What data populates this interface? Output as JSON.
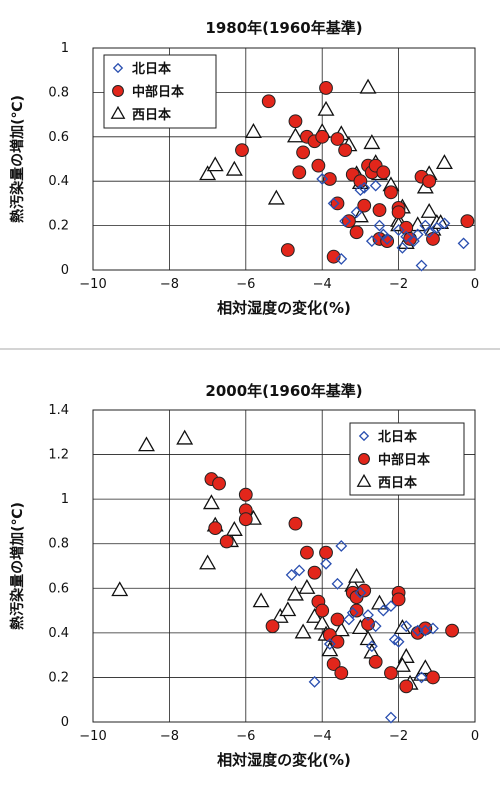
{
  "chart_data": [
    {
      "type": "scatter",
      "title": "1980年(1960年基準)",
      "xlabel": "相対湿度の変化(%)",
      "ylabel": "熱汚染量の増加(℃)",
      "xlim": [
        -10,
        0
      ],
      "ylim": [
        0,
        1
      ],
      "xticks": [
        -10,
        -8,
        -6,
        -4,
        -2,
        0
      ],
      "yticks": [
        0,
        0.2,
        0.4,
        0.6,
        0.8,
        1
      ],
      "tick_labels_x": [
        "−10",
        "−8",
        "−6",
        "−4",
        "−2",
        "0"
      ],
      "tick_labels_y": [
        "0",
        "0.2",
        "0.4",
        "0.6",
        "0.8",
        "1"
      ],
      "grid": true,
      "legend_position": "top-left",
      "series": [
        {
          "name": "北日本",
          "marker": "diamond",
          "color": "#2a4fb0",
          "points": [
            [
              -4.0,
              0.41
            ],
            [
              -3.7,
              0.3
            ],
            [
              -3.4,
              0.22
            ],
            [
              -3.1,
              0.26
            ],
            [
              -3.0,
              0.36
            ],
            [
              -2.9,
              0.37
            ],
            [
              -2.7,
              0.13
            ],
            [
              -2.6,
              0.38
            ],
            [
              -2.5,
              0.2
            ],
            [
              -2.4,
              0.16
            ],
            [
              -2.3,
              0.14
            ],
            [
              -2.0,
              0.18
            ],
            [
              -1.9,
              0.1
            ],
            [
              -1.8,
              0.15
            ],
            [
              -1.6,
              0.13
            ],
            [
              -1.5,
              0.16
            ],
            [
              -1.4,
              0.02
            ],
            [
              -1.3,
              0.2
            ],
            [
              -1.2,
              0.17
            ],
            [
              -1.0,
              0.19
            ],
            [
              -0.8,
              0.21
            ],
            [
              -0.3,
              0.12
            ],
            [
              -3.5,
              0.05
            ]
          ]
        },
        {
          "name": "中部日本",
          "marker": "circle",
          "color": "#e2261b",
          "points": [
            [
              -6.1,
              0.54
            ],
            [
              -5.4,
              0.76
            ],
            [
              -4.9,
              0.09
            ],
            [
              -4.7,
              0.67
            ],
            [
              -4.6,
              0.44
            ],
            [
              -4.5,
              0.53
            ],
            [
              -4.4,
              0.6
            ],
            [
              -4.2,
              0.58
            ],
            [
              -4.1,
              0.47
            ],
            [
              -4.0,
              0.6
            ],
            [
              -3.9,
              0.82
            ],
            [
              -3.8,
              0.41
            ],
            [
              -3.7,
              0.06
            ],
            [
              -3.6,
              0.59
            ],
            [
              -3.6,
              0.3
            ],
            [
              -3.4,
              0.54
            ],
            [
              -3.3,
              0.22
            ],
            [
              -3.2,
              0.43
            ],
            [
              -3.1,
              0.17
            ],
            [
              -3.0,
              0.4
            ],
            [
              -2.9,
              0.29
            ],
            [
              -2.8,
              0.47
            ],
            [
              -2.7,
              0.44
            ],
            [
              -2.6,
              0.47
            ],
            [
              -2.5,
              0.27
            ],
            [
              -2.5,
              0.14
            ],
            [
              -2.4,
              0.44
            ],
            [
              -2.3,
              0.13
            ],
            [
              -2.2,
              0.35
            ],
            [
              -2.0,
              0.28
            ],
            [
              -2.0,
              0.26
            ],
            [
              -1.8,
              0.19
            ],
            [
              -1.7,
              0.14
            ],
            [
              -1.4,
              0.42
            ],
            [
              -1.2,
              0.4
            ],
            [
              -1.1,
              0.14
            ],
            [
              -0.2,
              0.22
            ]
          ]
        },
        {
          "name": "西日本",
          "marker": "triangle",
          "color": "#111111",
          "points": [
            [
              -7.0,
              0.43
            ],
            [
              -6.8,
              0.47
            ],
            [
              -6.3,
              0.45
            ],
            [
              -5.8,
              0.62
            ],
            [
              -5.2,
              0.32
            ],
            [
              -4.7,
              0.6
            ],
            [
              -4.0,
              0.62
            ],
            [
              -3.9,
              0.72
            ],
            [
              -3.5,
              0.61
            ],
            [
              -3.3,
              0.56
            ],
            [
              -3.1,
              0.43
            ],
            [
              -3.0,
              0.39
            ],
            [
              -3.0,
              0.24
            ],
            [
              -2.8,
              0.82
            ],
            [
              -2.7,
              0.57
            ],
            [
              -2.6,
              0.48
            ],
            [
              -2.5,
              0.43
            ],
            [
              -2.2,
              0.38
            ],
            [
              -2.0,
              0.22
            ],
            [
              -2.0,
              0.2
            ],
            [
              -1.9,
              0.28
            ],
            [
              -1.8,
              0.12
            ],
            [
              -1.5,
              0.2
            ],
            [
              -1.3,
              0.37
            ],
            [
              -1.2,
              0.26
            ],
            [
              -1.1,
              0.18
            ],
            [
              -1.0,
              0.21
            ],
            [
              -0.9,
              0.21
            ],
            [
              -0.8,
              0.48
            ],
            [
              -1.2,
              0.43
            ]
          ]
        }
      ]
    },
    {
      "type": "scatter",
      "title": "2000年(1960年基準)",
      "xlabel": "相対湿度の変化(%)",
      "ylabel": "熱汚染量の増加(℃)",
      "xlim": [
        -10,
        0
      ],
      "ylim": [
        0,
        1.4
      ],
      "xticks": [
        -10,
        -8,
        -6,
        -4,
        -2,
        0
      ],
      "yticks": [
        0,
        0.2,
        0.4,
        0.6,
        0.8,
        1,
        1.2,
        1.4
      ],
      "tick_labels_x": [
        "−10",
        "−8",
        "−6",
        "−4",
        "−2",
        "0"
      ],
      "tick_labels_y": [
        "0",
        "0.2",
        "0.4",
        "0.6",
        "0.8",
        "1",
        "1.2",
        "1.4"
      ],
      "grid": true,
      "legend_position": "top-right",
      "series": [
        {
          "name": "北日本",
          "marker": "diamond",
          "color": "#2a4fb0",
          "points": [
            [
              -4.8,
              0.66
            ],
            [
              -4.6,
              0.68
            ],
            [
              -4.2,
              0.18
            ],
            [
              -3.9,
              0.71
            ],
            [
              -3.8,
              0.35
            ],
            [
              -3.6,
              0.62
            ],
            [
              -3.5,
              0.79
            ],
            [
              -3.3,
              0.46
            ],
            [
              -3.2,
              0.49
            ],
            [
              -3.0,
              0.58
            ],
            [
              -2.8,
              0.48
            ],
            [
              -2.7,
              0.34
            ],
            [
              -2.6,
              0.43
            ],
            [
              -2.4,
              0.5
            ],
            [
              -2.2,
              0.02
            ],
            [
              -2.2,
              0.52
            ],
            [
              -2.1,
              0.37
            ],
            [
              -2.0,
              0.36
            ],
            [
              -1.8,
              0.43
            ],
            [
              -1.5,
              0.41
            ],
            [
              -1.4,
              0.2
            ],
            [
              -1.3,
              0.41
            ],
            [
              -1.1,
              0.42
            ]
          ]
        },
        {
          "name": "中部日本",
          "marker": "circle",
          "color": "#e2261b",
          "points": [
            [
              -6.9,
              1.09
            ],
            [
              -6.7,
              1.07
            ],
            [
              -6.8,
              0.87
            ],
            [
              -6.5,
              0.81
            ],
            [
              -6.0,
              1.02
            ],
            [
              -6.0,
              0.95
            ],
            [
              -6.0,
              0.91
            ],
            [
              -5.3,
              0.43
            ],
            [
              -4.7,
              0.89
            ],
            [
              -4.4,
              0.76
            ],
            [
              -4.2,
              0.67
            ],
            [
              -4.1,
              0.54
            ],
            [
              -4.0,
              0.5
            ],
            [
              -3.9,
              0.76
            ],
            [
              -3.8,
              0.39
            ],
            [
              -3.7,
              0.26
            ],
            [
              -3.6,
              0.46
            ],
            [
              -3.6,
              0.36
            ],
            [
              -3.5,
              0.22
            ],
            [
              -3.2,
              0.58
            ],
            [
              -3.1,
              0.56
            ],
            [
              -3.1,
              0.5
            ],
            [
              -2.9,
              0.59
            ],
            [
              -2.8,
              0.44
            ],
            [
              -2.6,
              0.27
            ],
            [
              -2.2,
              0.22
            ],
            [
              -2.0,
              0.58
            ],
            [
              -2.0,
              0.55
            ],
            [
              -1.8,
              0.16
            ],
            [
              -1.5,
              0.4
            ],
            [
              -1.3,
              0.42
            ],
            [
              -1.1,
              0.2
            ],
            [
              -0.6,
              0.41
            ]
          ]
        },
        {
          "name": "西日本",
          "marker": "triangle",
          "color": "#111111",
          "points": [
            [
              -9.3,
              0.59
            ],
            [
              -8.6,
              1.24
            ],
            [
              -7.6,
              1.27
            ],
            [
              -7.0,
              0.71
            ],
            [
              -6.9,
              0.98
            ],
            [
              -6.8,
              0.88
            ],
            [
              -6.4,
              0.81
            ],
            [
              -6.3,
              0.86
            ],
            [
              -5.8,
              0.91
            ],
            [
              -5.6,
              0.54
            ],
            [
              -5.1,
              0.47
            ],
            [
              -4.9,
              0.5
            ],
            [
              -4.7,
              0.57
            ],
            [
              -4.5,
              0.4
            ],
            [
              -4.4,
              0.6
            ],
            [
              -4.2,
              0.47
            ],
            [
              -4.0,
              0.44
            ],
            [
              -3.9,
              0.39
            ],
            [
              -3.8,
              0.32
            ],
            [
              -3.5,
              0.41
            ],
            [
              -3.2,
              0.61
            ],
            [
              -3.1,
              0.65
            ],
            [
              -3.0,
              0.42
            ],
            [
              -2.8,
              0.37
            ],
            [
              -2.7,
              0.31
            ],
            [
              -2.5,
              0.53
            ],
            [
              -1.9,
              0.42
            ],
            [
              -1.8,
              0.29
            ],
            [
              -1.9,
              0.25
            ],
            [
              -1.7,
              0.17
            ],
            [
              -1.4,
              0.21
            ],
            [
              -1.3,
              0.24
            ]
          ]
        }
      ]
    }
  ]
}
